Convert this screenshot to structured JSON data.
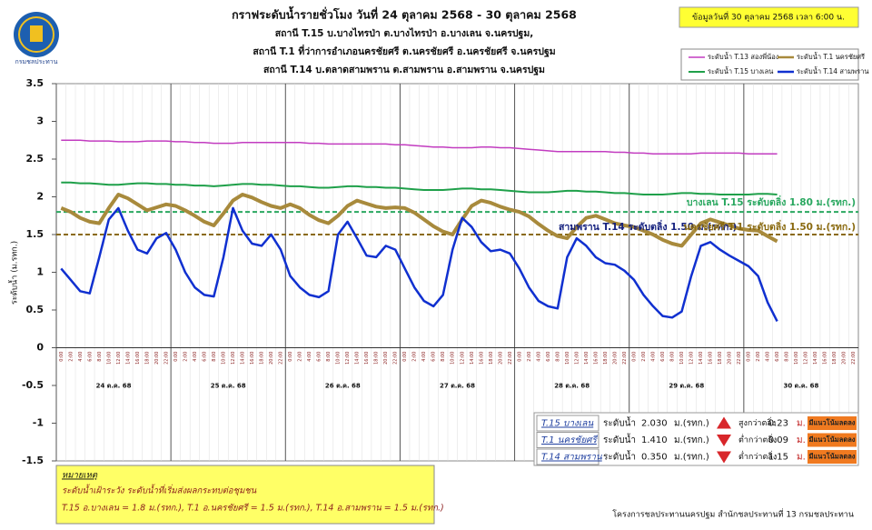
{
  "logo_text": "กรมชลประทาน",
  "date_note": "ข้อมูลวันที่ 30 ตุลาคม 2568 เวลา 6:00 น.",
  "chart_data": {
    "type": "line",
    "title": "กราฟระดับน้ำรายชั่วโมง วันที่ 24 ตุลาคม 2568 - 30 ตุลาคม 2568",
    "subtitles": [
      "สถานี T.15 บ.บางไทรป่า ต.บางไทรป่า อ.บางเลน จ.นครปฐม,",
      "สถานี T.1 ที่ว่าการอำเภอนครชัยศรี ต.นครชัยศรี อ.นครชัยศรี จ.นครปฐม",
      "สถานี T.14 บ.ตลาดสามพราน ต.สามพราน อ.สามพราน จ.นครปฐม"
    ],
    "y_label": "ระดับน้ำ (ม.รทก.)",
    "ylim": [
      -1.5,
      3.5
    ],
    "yticks": [
      3.5,
      3,
      2.5,
      2,
      1.5,
      1,
      0.5,
      0,
      -0.5,
      -1,
      -1.5
    ],
    "day_labels": [
      "24 ต.ค. 68",
      "25 ต.ค. 68",
      "26 ต.ค. 68",
      "27 ต.ค. 68",
      "28 ต.ค. 68",
      "29 ต.ค. 68",
      "30 ต.ค. 68"
    ],
    "categories": [
      "0:00",
      "2:00",
      "4:00",
      "6:00",
      "8:00",
      "10:00",
      "12:00",
      "14:00",
      "16:00",
      "18:00",
      "20:00",
      "22:00",
      "0:00",
      "2:00",
      "4:00",
      "6:00",
      "8:00",
      "10:00",
      "12:00",
      "14:00",
      "16:00",
      "18:00",
      "20:00",
      "22:00",
      "0:00",
      "2:00",
      "4:00",
      "6:00",
      "8:00",
      "10:00",
      "12:00",
      "14:00",
      "16:00",
      "18:00",
      "20:00",
      "22:00",
      "0:00",
      "2:00",
      "4:00",
      "6:00",
      "8:00",
      "10:00",
      "12:00",
      "14:00",
      "16:00",
      "18:00",
      "20:00",
      "22:00",
      "0:00",
      "2:00",
      "4:00",
      "6:00",
      "8:00",
      "10:00",
      "12:00",
      "14:00",
      "16:00",
      "18:00",
      "20:00",
      "22:00",
      "0:00",
      "2:00",
      "4:00",
      "6:00",
      "8:00",
      "10:00",
      "12:00",
      "14:00",
      "16:00",
      "18:00",
      "20:00",
      "22:00",
      "0:00",
      "2:00",
      "4:00",
      "6:00",
      "8:00",
      "10:00",
      "12:00",
      "14:00",
      "16:00",
      "18:00",
      "20:00",
      "22:00"
    ],
    "series": [
      {
        "name": "ระดับน้ำ T.13 สองพี่น้อง",
        "color": "#c23cc0",
        "width": 1.5,
        "values": [
          2.75,
          2.75,
          2.75,
          2.74,
          2.74,
          2.74,
          2.73,
          2.73,
          2.73,
          2.74,
          2.74,
          2.74,
          2.73,
          2.73,
          2.72,
          2.72,
          2.71,
          2.71,
          2.71,
          2.72,
          2.72,
          2.72,
          2.72,
          2.72,
          2.72,
          2.72,
          2.71,
          2.71,
          2.7,
          2.7,
          2.7,
          2.7,
          2.7,
          2.7,
          2.7,
          2.69,
          2.69,
          2.68,
          2.67,
          2.66,
          2.66,
          2.65,
          2.65,
          2.65,
          2.66,
          2.66,
          2.65,
          2.65,
          2.64,
          2.63,
          2.62,
          2.61,
          2.6,
          2.6,
          2.6,
          2.6,
          2.6,
          2.6,
          2.59,
          2.59,
          2.58,
          2.58,
          2.57,
          2.57,
          2.57,
          2.57,
          2.57,
          2.58,
          2.58,
          2.58,
          2.58,
          2.58,
          2.57,
          2.57,
          2.57,
          2.57,
          null,
          null,
          null,
          null,
          null,
          null,
          null,
          null
        ]
      },
      {
        "name": "ระดับน้ำ T.1 นครชัยศรี",
        "color": "#a88a3c",
        "width": 4,
        "values": [
          1.85,
          1.8,
          1.72,
          1.67,
          1.65,
          1.85,
          2.03,
          1.98,
          1.9,
          1.82,
          1.86,
          1.9,
          1.88,
          1.82,
          1.75,
          1.67,
          1.62,
          1.78,
          1.95,
          2.03,
          1.99,
          1.93,
          1.88,
          1.85,
          1.9,
          1.85,
          1.76,
          1.69,
          1.65,
          1.75,
          1.88,
          1.95,
          1.91,
          1.87,
          1.85,
          1.86,
          1.85,
          1.79,
          1.7,
          1.61,
          1.54,
          1.5,
          1.7,
          1.88,
          1.95,
          1.92,
          1.87,
          1.83,
          1.8,
          1.74,
          1.64,
          1.55,
          1.48,
          1.45,
          1.6,
          1.72,
          1.75,
          1.7,
          1.65,
          1.62,
          1.6,
          1.55,
          1.5,
          1.43,
          1.38,
          1.35,
          1.5,
          1.65,
          1.7,
          1.66,
          1.62,
          1.58,
          1.56,
          1.55,
          1.48,
          1.41,
          null,
          null,
          null,
          null,
          null,
          null,
          null,
          null
        ]
      },
      {
        "name": "ระดับน้ำ T.15 บางเลน",
        "color": "#1fa04a",
        "width": 2,
        "values": [
          2.19,
          2.19,
          2.18,
          2.18,
          2.17,
          2.16,
          2.16,
          2.17,
          2.18,
          2.18,
          2.17,
          2.17,
          2.16,
          2.16,
          2.15,
          2.15,
          2.14,
          2.15,
          2.16,
          2.17,
          2.17,
          2.16,
          2.16,
          2.15,
          2.14,
          2.14,
          2.13,
          2.12,
          2.12,
          2.13,
          2.14,
          2.14,
          2.13,
          2.13,
          2.12,
          2.12,
          2.11,
          2.1,
          2.09,
          2.09,
          2.09,
          2.1,
          2.11,
          2.11,
          2.1,
          2.1,
          2.09,
          2.08,
          2.07,
          2.06,
          2.06,
          2.06,
          2.07,
          2.08,
          2.08,
          2.07,
          2.07,
          2.06,
          2.05,
          2.05,
          2.04,
          2.03,
          2.03,
          2.03,
          2.04,
          2.05,
          2.05,
          2.04,
          2.04,
          2.03,
          2.03,
          2.03,
          2.03,
          2.04,
          2.04,
          2.03,
          null,
          null,
          null,
          null,
          null,
          null,
          null,
          null
        ]
      },
      {
        "name": "ระดับน้ำ T.14 สามพราน",
        "color": "#1030d0",
        "width": 2.5,
        "values": [
          1.05,
          0.9,
          0.75,
          0.72,
          1.2,
          1.7,
          1.85,
          1.55,
          1.3,
          1.25,
          1.45,
          1.52,
          1.3,
          1.0,
          0.8,
          0.7,
          0.68,
          1.2,
          1.85,
          1.55,
          1.38,
          1.35,
          1.5,
          1.3,
          0.95,
          0.8,
          0.7,
          0.67,
          0.75,
          1.5,
          1.67,
          1.45,
          1.22,
          1.2,
          1.35,
          1.3,
          1.05,
          0.8,
          0.62,
          0.55,
          0.7,
          1.3,
          1.72,
          1.6,
          1.4,
          1.28,
          1.3,
          1.25,
          1.05,
          0.8,
          0.62,
          0.55,
          0.52,
          1.2,
          1.45,
          1.35,
          1.2,
          1.12,
          1.1,
          1.02,
          0.9,
          0.7,
          0.55,
          0.42,
          0.4,
          0.48,
          0.95,
          1.35,
          1.4,
          1.3,
          1.22,
          1.15,
          1.08,
          0.95,
          0.6,
          0.35,
          null,
          null,
          null,
          null,
          null,
          null,
          null,
          null
        ]
      }
    ],
    "legend_colors": [
      "#1a2a8a"
    ],
    "reference_lines": [
      {
        "label": "บางเลน T.15 ระดับตลิ่ง 1.80 ม.(รทก.)",
        "value": 1.8,
        "color": "#2aa860"
      },
      {
        "label": "สามพราน T.14 ระดับตลิ่ง 1.50 ม.(รทก.)",
        "value": 1.5,
        "color": "#14207e"
      },
      {
        "label": "นครชัยศรี T.1 ระดับตลิ่ง 1.50 ม.(รทก.)",
        "value": 1.5,
        "color": "#8a6a10"
      }
    ]
  },
  "status_table": [
    {
      "station": "T.15 บางเลน",
      "label": "ระดับน้ำ",
      "value": "2.030",
      "unit": "ม.(รทก.)",
      "direction": "up",
      "comparison": "สูงกว่าตลิ่ง",
      "diff": "0.23",
      "diff_unit": "ม.",
      "trend": "มีแนวโน้มลดลง"
    },
    {
      "station": "T.1 นครชัยศรี",
      "label": "ระดับน้ำ",
      "value": "1.410",
      "unit": "ม.(รทก.)",
      "direction": "down",
      "comparison": "ต่ำกว่าตลิ่ง",
      "diff": "0.09",
      "diff_unit": "ม.",
      "trend": "มีแนวโน้มลดลง"
    },
    {
      "station": "T.14 สามพราน",
      "label": "ระดับน้ำ",
      "value": "0.350",
      "unit": "ม.(รทก.)",
      "direction": "down",
      "comparison": "ต่ำกว่าตลิ่ง",
      "diff": "1.15",
      "diff_unit": "ม.",
      "trend": "มีแนวโน้มลดลง"
    }
  ],
  "notes": {
    "heading": "หมายเหตุ",
    "line1": "ระดับน้ำเฝ้าระวัง ระดับน้ำที่เริ่มส่งผลกระทบต่อชุมชน",
    "line2": "T.15 อ.บางเลน = 1.8 ม.(รทก.), T.1 อ.นครชัยศรี = 1.5 ม.(รทก.), T.14 อ.สามพราน = 1.5 ม.(รทก.)"
  },
  "footer": "โครงการชลประทานนครปฐม สำนักชลประทานที่ 13 กรมชลประทาน"
}
